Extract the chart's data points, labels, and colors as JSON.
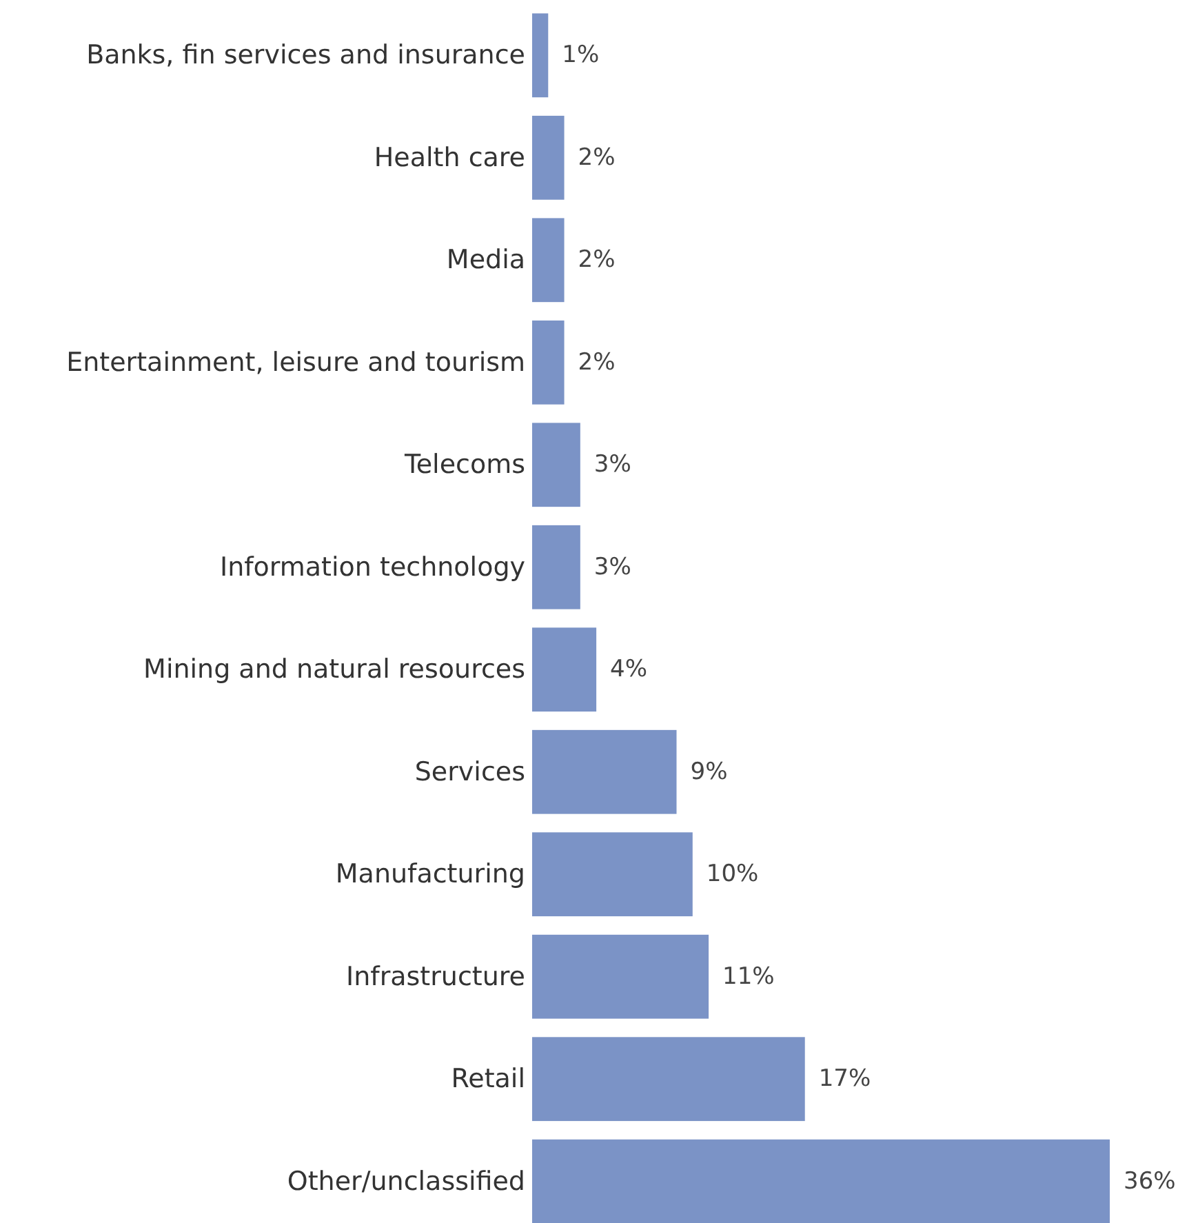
{
  "chart_data": {
    "type": "bar",
    "orientation": "horizontal",
    "categories": [
      "Banks, fin services and insurance",
      "Health care",
      "Media",
      "Entertainment, leisure and tourism",
      "Telecoms",
      "Information technology",
      "Mining and natural resources",
      "Services",
      "Manufacturing",
      "Infrastructure",
      "Retail",
      "Other/unclassified"
    ],
    "values": [
      1,
      2,
      2,
      2,
      3,
      3,
      4,
      9,
      10,
      11,
      17,
      36
    ],
    "value_labels": [
      "1%",
      "2%",
      "2%",
      "2%",
      "3%",
      "3%",
      "4%",
      "9%",
      "10%",
      "11%",
      "17%",
      "36%"
    ],
    "color": "#7b93c6"
  }
}
